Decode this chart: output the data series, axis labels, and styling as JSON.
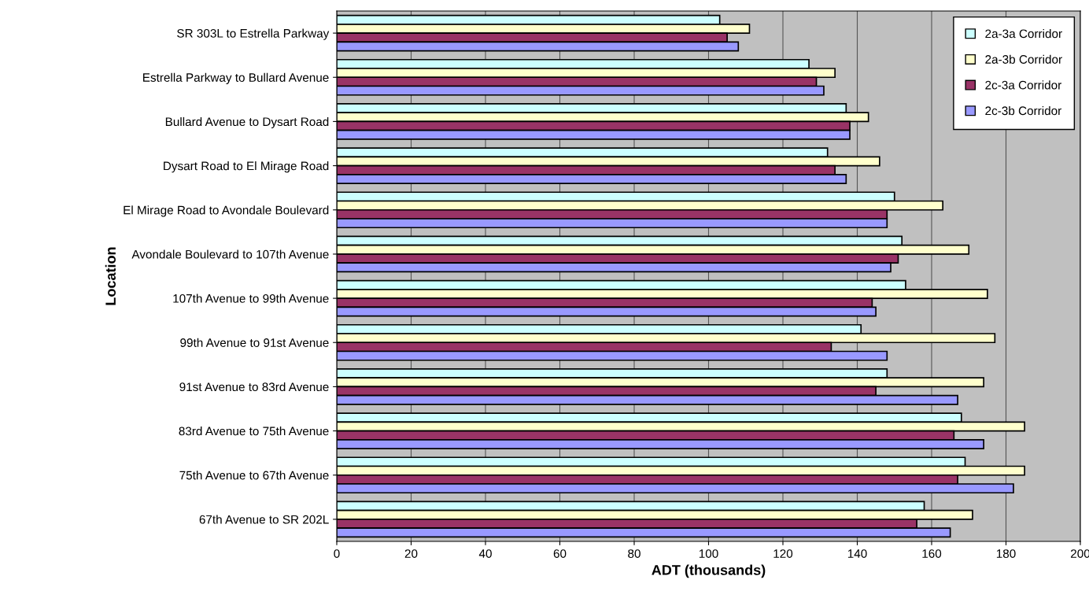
{
  "chart_data": {
    "type": "bar",
    "orientation": "horizontal",
    "xlabel": "ADT (thousands)",
    "ylabel": "Location",
    "categories": [
      "SR 303L to Estrella Parkway",
      "Estrella Parkway to Bullard Avenue",
      "Bullard Avenue to Dysart Road",
      "Dysart Road to El Mirage Road",
      "El Mirage Road to Avondale Boulevard",
      "Avondale Boulevard to 107th Avenue",
      "107th Avenue to 99th Avenue",
      "99th Avenue to 91st Avenue",
      "91st Avenue to 83rd Avenue",
      "83rd Avenue to 75th Avenue",
      "75th Avenue to 67th Avenue",
      "67th Avenue to SR 202L"
    ],
    "series": [
      {
        "name": "2a-3a Corridor",
        "color": "#ccffff",
        "values": [
          103,
          127,
          137,
          132,
          150,
          152,
          153,
          141,
          148,
          168,
          169,
          158
        ]
      },
      {
        "name": "2a-3b Corridor",
        "color": "#ffffcc",
        "values": [
          111,
          134,
          143,
          146,
          163,
          170,
          175,
          177,
          174,
          185,
          185,
          171
        ]
      },
      {
        "name": "2c-3a Corridor",
        "color": "#993366",
        "values": [
          105,
          129,
          138,
          134,
          148,
          151,
          144,
          133,
          145,
          166,
          167,
          156
        ]
      },
      {
        "name": "2c-3b Corridor",
        "color": "#9999ff",
        "values": [
          108,
          131,
          138,
          137,
          148,
          149,
          145,
          148,
          167,
          174,
          182,
          165
        ]
      }
    ],
    "xlim": [
      0,
      200
    ],
    "xticks": [
      0,
      20,
      40,
      60,
      80,
      100,
      120,
      140,
      160,
      180,
      200
    ],
    "grid": "x",
    "legend": "top right"
  }
}
